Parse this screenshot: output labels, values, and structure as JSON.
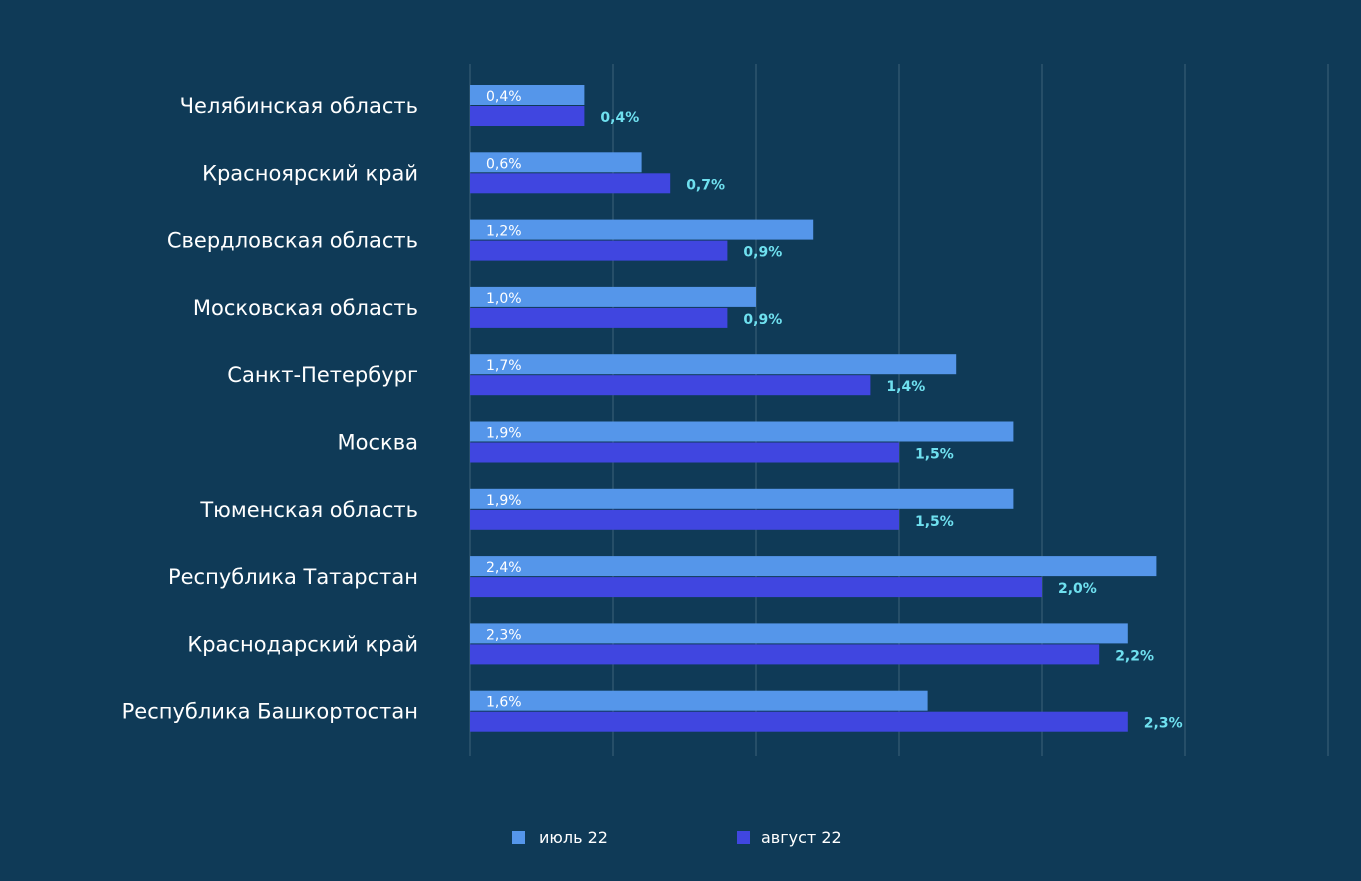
{
  "chart_data": {
    "type": "bar",
    "orientation": "horizontal",
    "categories": [
      "Челябинская область",
      "Красноярский край",
      "Свердловская область",
      "Московская область",
      "Санкт-Петербург",
      "Москва",
      "Тюменская область",
      "Республика Татарстан",
      "Краснодарский край",
      "Республика Башкортостан"
    ],
    "series": [
      {
        "name": "июль 22",
        "color": "#5596ea",
        "values": [
          0.4,
          0.6,
          1.2,
          1.0,
          1.7,
          1.9,
          1.9,
          2.4,
          2.3,
          1.6
        ],
        "labels": [
          "0,4%",
          "0,6%",
          "1,2%",
          "1,0%",
          "1,7%",
          "1,9%",
          "1,9%",
          "2,4%",
          "2,3%",
          "1,6%"
        ]
      },
      {
        "name": "август 22",
        "color": "#4046e0",
        "values": [
          0.4,
          0.7,
          0.9,
          0.9,
          1.4,
          1.5,
          1.5,
          2.0,
          2.2,
          2.3
        ],
        "labels": [
          "0,4%",
          "0,7%",
          "0,9%",
          "0,9%",
          "1,4%",
          "1,5%",
          "1,5%",
          "2,0%",
          "2,2%",
          "2,3%"
        ]
      }
    ],
    "xlim": [
      0,
      3.0
    ],
    "grid": true,
    "legend_position": "bottom"
  },
  "colors": {
    "background": "#0f3a57",
    "gridline": "#3c6179",
    "category_text": "#ffffff",
    "july_label_text": "#ffffff",
    "august_label_text": "#6fe0ef"
  }
}
